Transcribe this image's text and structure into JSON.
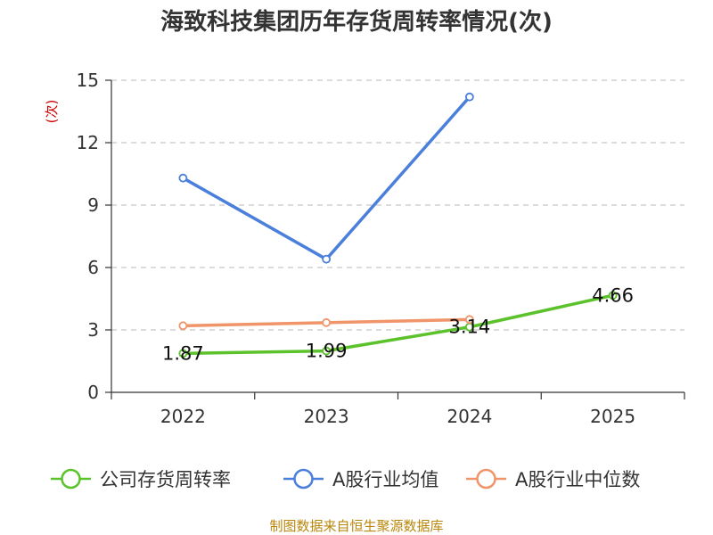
{
  "chart_data": {
    "type": "line",
    "title": "海致科技集团历年存货周转率情况(次)",
    "ylabel": "(次)",
    "xlabel": "",
    "categories": [
      "2022",
      "2023",
      "2024",
      "2025"
    ],
    "ylim": [
      0,
      15
    ],
    "yticks": [
      0,
      3,
      6,
      9,
      12,
      15
    ],
    "grid": "horizontal-dashed",
    "legend": "bottom",
    "series": [
      {
        "name": "公司存货周转率",
        "color": "#5cc22b",
        "values": [
          1.87,
          1.99,
          3.14,
          4.66
        ],
        "labels": [
          "1.87",
          "1.99",
          "3.14",
          "4.66"
        ]
      },
      {
        "name": "A股行业均值",
        "color": "#4a7fdc",
        "values": [
          10.3,
          6.4,
          14.2,
          null
        ]
      },
      {
        "name": "A股行业中位数",
        "color": "#f0956a",
        "values": [
          3.2,
          3.35,
          3.5,
          null
        ]
      }
    ],
    "source": "制图数据来自恒生聚源数据库"
  }
}
